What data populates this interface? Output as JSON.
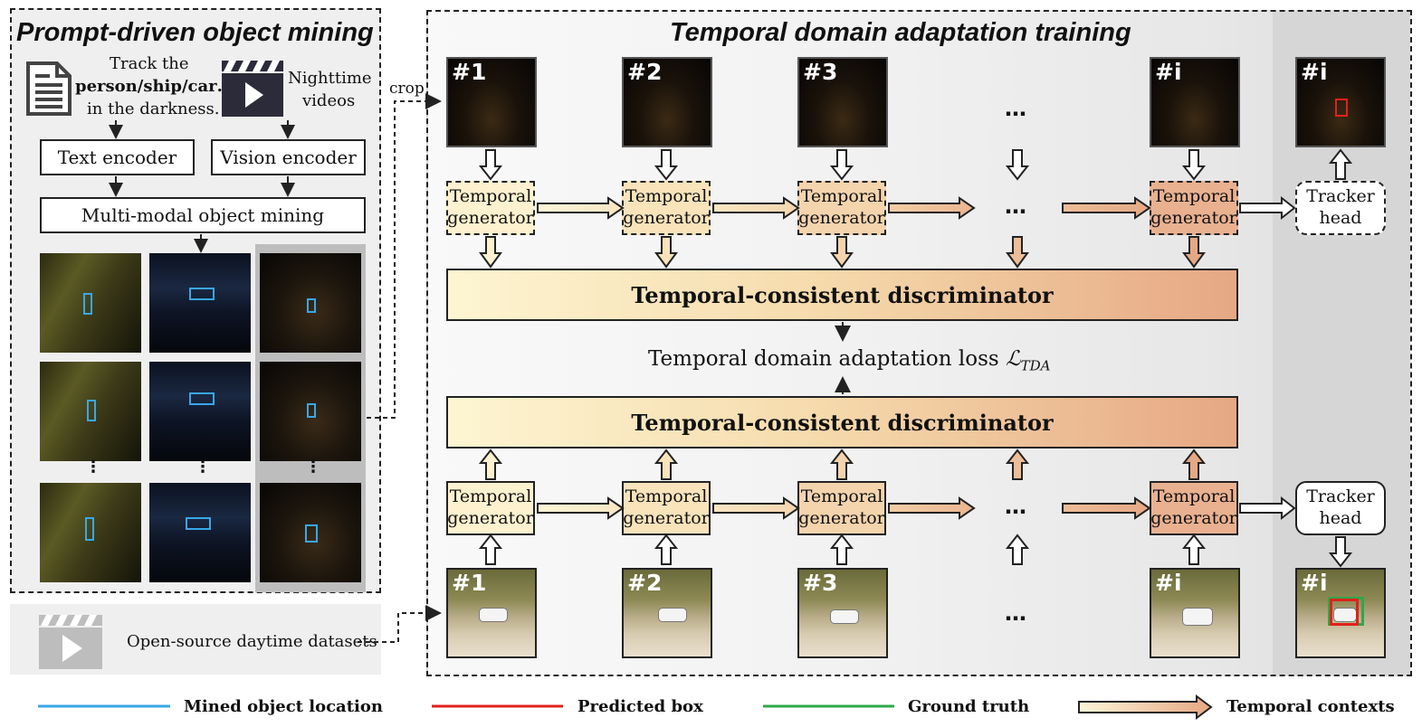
{
  "left_title": "Prompt-driven object mining",
  "right_title": "Temporal domain adaptation training",
  "prompt_text": [
    "Track the",
    "person/ship/car…",
    "in the darkness."
  ],
  "video_label": [
    "Nighttime",
    "videos"
  ],
  "text_encoder": "Text encoder",
  "vision_encoder": "Vision encoder",
  "mining": "Multi-modal object mining",
  "crop": "crop",
  "daytime": "Open-source daytime datasets",
  "frame_labels": [
    "#1",
    "#2",
    "#3",
    "#i",
    "#i"
  ],
  "ellipsis": "…",
  "generator_label": [
    "Temporal",
    "generator"
  ],
  "tracker_label": [
    "Tracker",
    "head"
  ],
  "discriminator": "Temporal-consistent discriminator",
  "loss_text": "Temporal domain adaptation loss",
  "loss_symbol": "ℒ",
  "loss_sub": "TDA",
  "legend": {
    "mined": "Mined object location",
    "predicted": "Predicted box",
    "ground_truth": "Ground truth",
    "temporal": "Temporal contexts"
  },
  "colors": {
    "mined": "#39a7e8",
    "predicted": "#e0221b",
    "ground_truth": "#2fa84a"
  }
}
